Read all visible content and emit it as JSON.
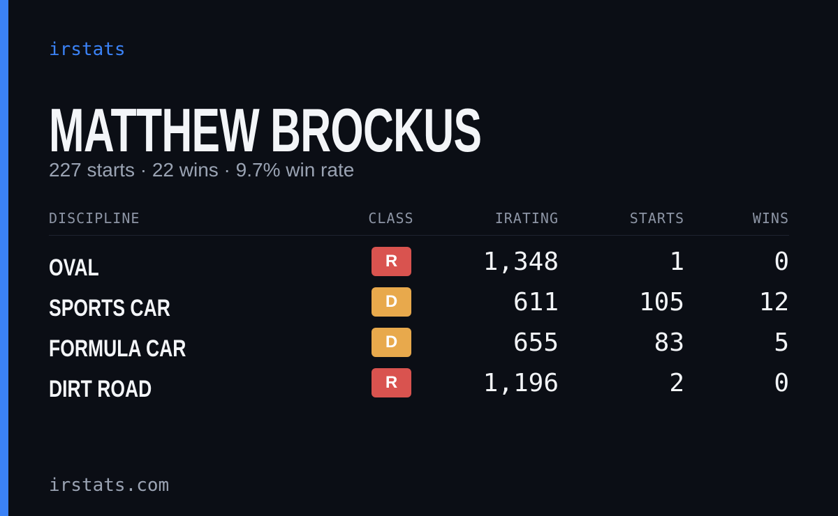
{
  "brand": "irstats",
  "name": "MATTHEW BROCKUS",
  "summary": "227 starts · 22 wins · 9.7% win rate",
  "table": {
    "headers": [
      "DISCIPLINE",
      "CLASS",
      "IRATING",
      "STARTS",
      "WINS"
    ],
    "rows": [
      {
        "discipline": "OVAL",
        "class": "R",
        "class_color": "#d9534f",
        "irating": "1,348",
        "starts": "1",
        "wins": "0"
      },
      {
        "discipline": "SPORTS CAR",
        "class": "D",
        "class_color": "#e8a94c",
        "irating": "611",
        "starts": "105",
        "wins": "12"
      },
      {
        "discipline": "FORMULA CAR",
        "class": "D",
        "class_color": "#e8a94c",
        "irating": "655",
        "starts": "83",
        "wins": "5"
      },
      {
        "discipline": "DIRT ROAD",
        "class": "R",
        "class_color": "#d9534f",
        "irating": "1,196",
        "starts": "2",
        "wins": "0"
      }
    ]
  },
  "footer": "irstats.com"
}
